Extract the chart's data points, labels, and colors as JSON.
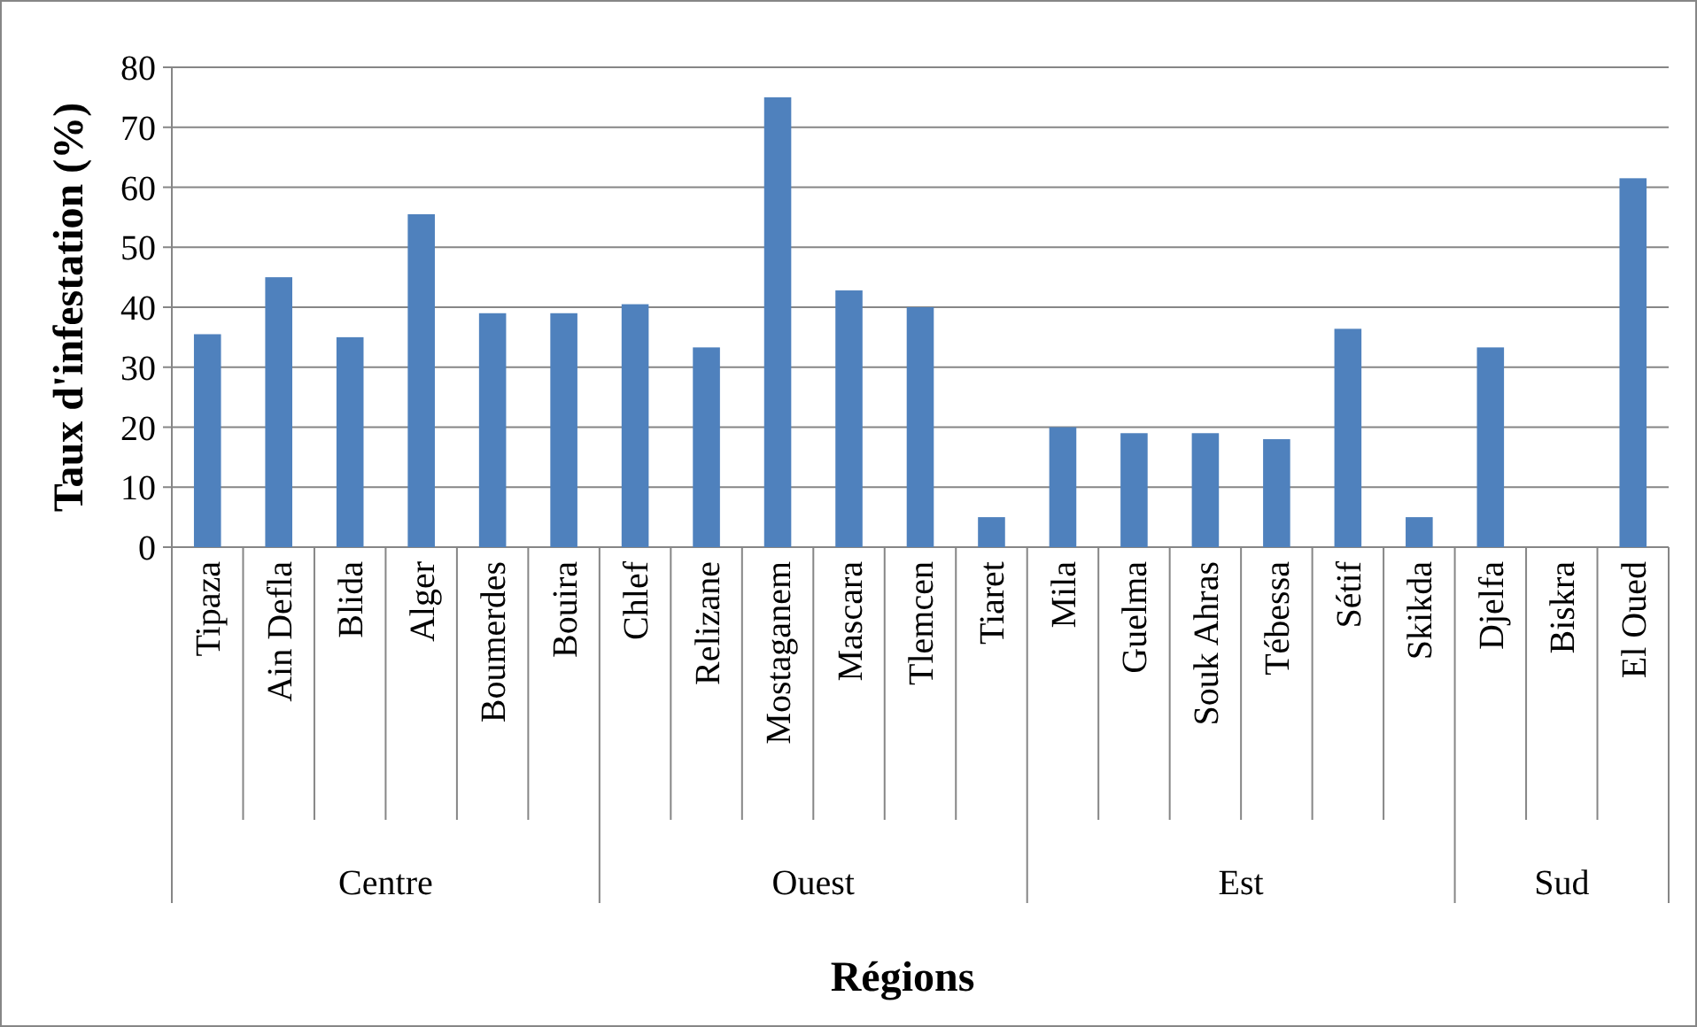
{
  "chart_data": {
    "type": "bar",
    "xlabel": "Régions",
    "ylabel": "Taux d'infestation (%)",
    "categories": [
      "Tipaza",
      "Ain Defla",
      "Blida",
      "Alger",
      "Boumerdes",
      "Bouira",
      "Chlef",
      "Relizane",
      "Mostaganem",
      "Mascara",
      "Tlemcen",
      "Tiaret",
      "Mila",
      "Guelma",
      "Souk Ahras",
      "Tébessa",
      "Sétif",
      "Skikda",
      "Djelfa",
      "Biskra",
      "El Oued"
    ],
    "values": [
      35.5,
      45,
      35,
      55.5,
      39,
      39,
      40.5,
      33.3,
      75,
      42.8,
      40,
      5,
      20,
      19,
      19,
      18,
      36.4,
      5,
      33.3,
      0,
      61.5
    ],
    "color": "#4f81bd",
    "ylim": [
      0,
      80
    ],
    "yticks": [
      0,
      10,
      20,
      30,
      40,
      50,
      60,
      70,
      80
    ],
    "grid": "y",
    "annotations": [
      "Centre",
      "Ouest",
      "Est",
      "Sud"
    ]
  }
}
